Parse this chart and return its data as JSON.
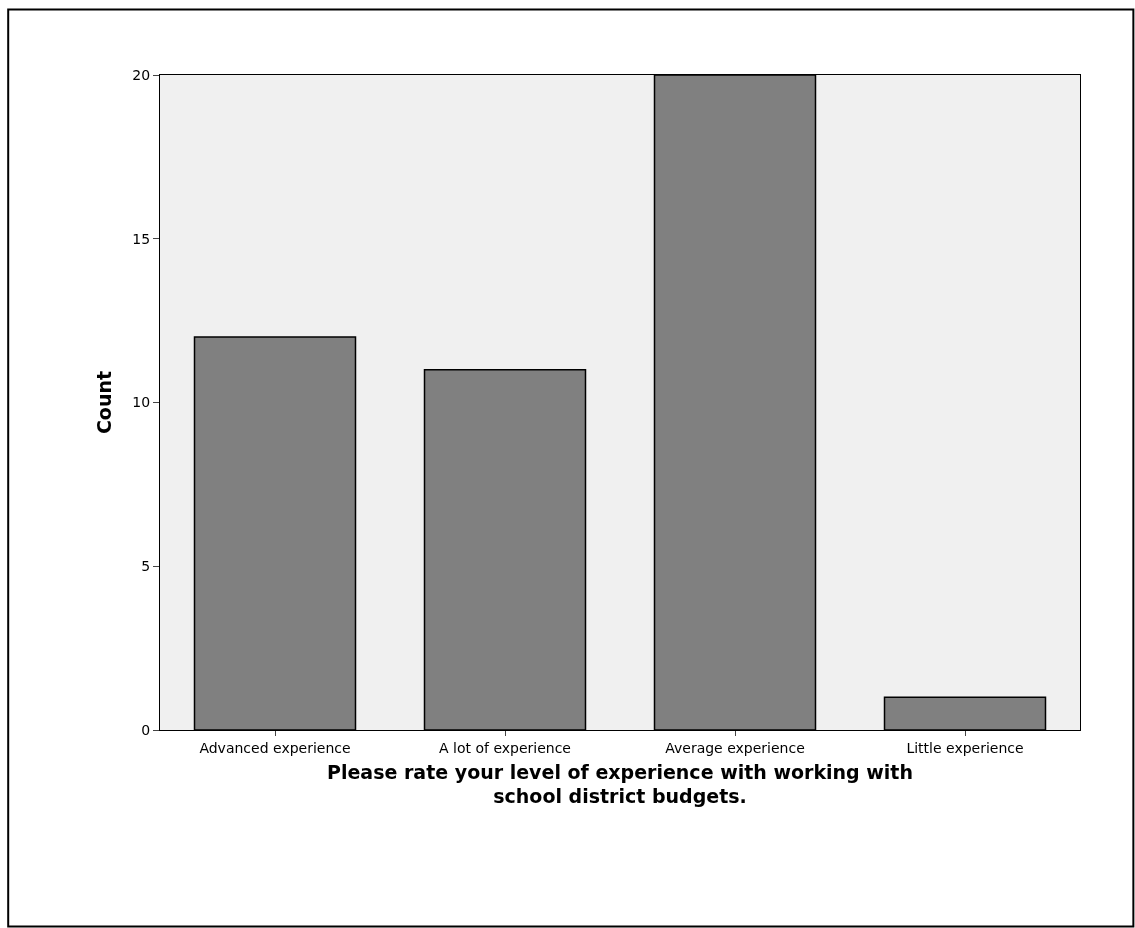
{
  "chart_data": {
    "type": "bar",
    "xlabel": "Please rate your level of experience with working with school district budgets.",
    "ylabel": "Count",
    "categories": [
      "Advanced experience",
      "A lot of experience",
      "Average experience",
      "Little experience"
    ],
    "values": [
      12,
      11,
      20,
      1
    ],
    "color": "#808080",
    "ylim": [
      0,
      20
    ],
    "yticks": [
      0,
      5,
      10,
      15,
      20
    ],
    "grid": false
  }
}
